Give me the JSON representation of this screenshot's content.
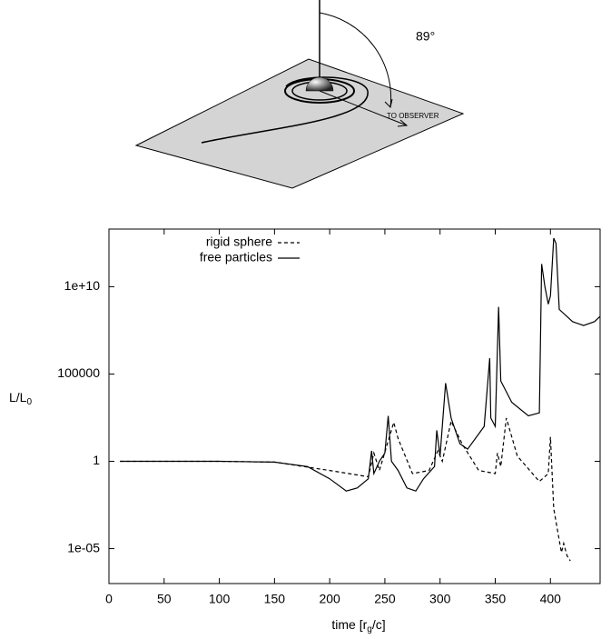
{
  "diagram": {
    "angle_label": "89°",
    "observer_label": "TO OBSERVER"
  },
  "chart_data": {
    "type": "line",
    "xlabel": [
      "time [r",
      "g",
      "/c]"
    ],
    "ylabel": [
      "L/L",
      "0"
    ],
    "xlim": [
      0,
      445
    ],
    "xticks": [
      0,
      50,
      100,
      150,
      200,
      250,
      300,
      350,
      400
    ],
    "ylim": [
      1e-07,
      20000000000000.0
    ],
    "yscale": "log",
    "yticks": [
      {
        "value": 1e-05,
        "label": "1e-05"
      },
      1,
      100000,
      {
        "value": 10000000000,
        "label": "1e+10"
      }
    ],
    "legend": "upper left",
    "series": [
      {
        "name": "rigid sphere",
        "color": "#000000",
        "style": "dashed",
        "x": [
          10,
          100,
          150,
          200,
          235,
          240,
          245,
          258,
          262,
          275,
          290,
          298,
          302,
          310,
          320,
          335,
          350,
          352,
          355,
          360,
          370,
          390,
          398,
          400,
          403,
          408,
          410,
          412,
          415,
          418
        ],
        "values": [
          1,
          1,
          0.9,
          0.3,
          0.13,
          3,
          0.3,
          170,
          20,
          0.2,
          0.3,
          4,
          1,
          200,
          10,
          0.3,
          0.2,
          3,
          0.5,
          300,
          2,
          0.07,
          0.2,
          25,
          0.002,
          3e-05,
          6e-06,
          2e-05,
          4e-06,
          2e-06
        ]
      },
      {
        "name": "free particles",
        "color": "#000000",
        "style": "solid",
        "x": [
          10,
          50,
          100,
          150,
          180,
          200,
          215,
          225,
          235,
          238,
          240,
          245,
          250,
          253,
          256,
          262,
          270,
          278,
          285,
          295,
          297,
          300,
          305,
          310,
          318,
          325,
          340,
          345,
          346,
          350,
          353,
          355,
          365,
          380,
          390,
          392,
          395,
          398,
          400,
          403,
          405,
          408,
          420,
          430,
          440,
          445
        ],
        "values": [
          1,
          1,
          1,
          0.9,
          0.5,
          0.1,
          0.02,
          0.03,
          0.1,
          4,
          0.2,
          1,
          3,
          400,
          1,
          0.3,
          0.03,
          0.02,
          0.1,
          0.5,
          60,
          2,
          30000,
          300,
          10,
          5,
          100,
          800000,
          300,
          100,
          700000000,
          40000,
          2400,
          400,
          600,
          200000000000.0,
          10000000000.0,
          1000000000.0,
          3000000000.0,
          6000000000000.0,
          3000000000000.0,
          500000000.0,
          100000000.0,
          60000000.0,
          100000000.0,
          200000000.0
        ]
      }
    ]
  }
}
